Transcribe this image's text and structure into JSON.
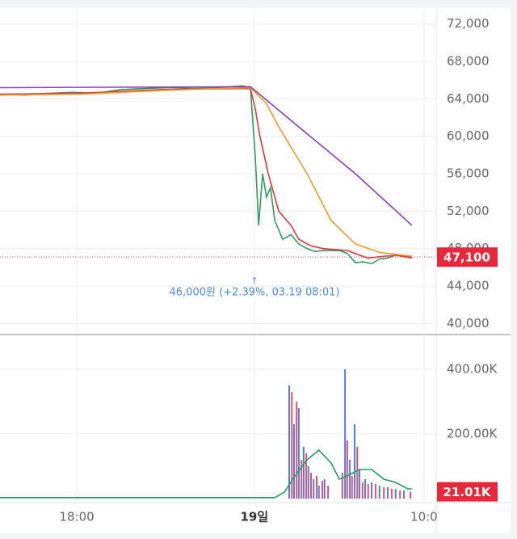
{
  "chart_data": [
    {
      "type": "line",
      "xlim": [
        0,
        100
      ],
      "ylim": [
        39000,
        73700
      ],
      "yticks": [
        {
          "value": 40000,
          "label": "40,000"
        },
        {
          "value": 44000,
          "label": "44,000"
        },
        {
          "value": 48000,
          "label": "48,000"
        },
        {
          "value": 52000,
          "label": "52,000"
        },
        {
          "value": 56000,
          "label": "56,000"
        },
        {
          "value": 60000,
          "label": "60,000"
        },
        {
          "value": 64000,
          "label": "64,000"
        },
        {
          "value": 68000,
          "label": "68,000"
        },
        {
          "value": 72000,
          "label": "72,000"
        }
      ],
      "last_value": {
        "value": 47100,
        "label": "47,100"
      },
      "annotation": "46,000원 (+2.39%, 03.19 08:01)",
      "series": [
        {
          "color": "#2e9d5e",
          "x": [
            0,
            5.6,
            11.1,
            16.7,
            22.2,
            27.8,
            33.3,
            38.9,
            44.4,
            50,
            55.6,
            57.4,
            58.5,
            59.3,
            60.2,
            61.1,
            62,
            63,
            63.9,
            64.8,
            66.7,
            68.5,
            70.4,
            72.2,
            74.1,
            77.8,
            79.6,
            81.5,
            83.3,
            85.2,
            87,
            88.9,
            90.7,
            92.6,
            94.4
          ],
          "values": [
            64500,
            64400,
            64600,
            64700,
            64600,
            65000,
            65100,
            65200,
            65100,
            65200,
            65400,
            65200,
            58000,
            50500,
            56000,
            53500,
            54500,
            51000,
            50000,
            49000,
            49500,
            48500,
            48000,
            47700,
            47800,
            47800,
            47500,
            46500,
            46600,
            46400,
            46900,
            47000,
            47300,
            47200,
            47100
          ]
        },
        {
          "color": "#e0393c",
          "x": [
            0,
            18.5,
            37,
            57.4,
            58.5,
            59.6,
            61.5,
            63.9,
            66.7,
            68.5,
            71.3,
            74.1,
            79.6,
            84.3,
            90.7,
            94.4
          ],
          "values": [
            64500,
            64600,
            65000,
            65100,
            63000,
            60000,
            56000,
            52000,
            50500,
            49000,
            48300,
            48000,
            47800,
            47000,
            47300,
            47000
          ]
        },
        {
          "color": "#f5972a",
          "x": [
            0,
            18.5,
            37,
            57.4,
            61.1,
            63.9,
            70.4,
            75.9,
            81.5,
            87,
            94.4
          ],
          "values": [
            64400,
            64500,
            64900,
            65200,
            63500,
            61000,
            56000,
            51000,
            48500,
            47600,
            47200
          ]
        },
        {
          "color": "#8b3db3",
          "x": [
            0,
            57.4,
            68.5,
            81.5,
            94.4
          ],
          "values": [
            65200,
            65300,
            61000,
            56000,
            50500
          ]
        }
      ]
    },
    {
      "type": "bar",
      "xlim": [
        0,
        100
      ],
      "ylim": [
        -10000,
        505000
      ],
      "yticks": [
        {
          "value": 200000,
          "label": "200.00K"
        },
        {
          "value": 400000,
          "label": "400.00K"
        }
      ],
      "xticks": [
        {
          "value": 17.6,
          "label": "18:00"
        },
        {
          "value": 58.3,
          "label": "19일"
        },
        {
          "value": 97.2,
          "label": "10:0"
        }
      ],
      "last_value": {
        "value": 21010,
        "label": "21.01K"
      },
      "series": [
        {
          "type": "bar",
          "color": "#4a7fe6",
          "x": [
            66.3,
            67.4,
            68.5,
            69.6,
            70.7,
            71.9,
            73.1,
            74.4,
            79.1,
            80.2,
            81.3,
            82.4,
            83.7,
            85.2,
            87,
            88.9,
            90.7,
            92.6
          ],
          "values": [
            350000,
            230000,
            280000,
            160000,
            100000,
            60000,
            40000,
            60000,
            400000,
            120000,
            230000,
            90000,
            60000,
            50000,
            40000,
            35000,
            30000,
            25000
          ]
        },
        {
          "type": "bar",
          "color": "#e8506a",
          "x": [
            66.9,
            68,
            69.1,
            70.2,
            71.3,
            72.6,
            73.9,
            75.2,
            78.5,
            79.6,
            80.7,
            81.9,
            83.1,
            84.4,
            86.1,
            88,
            89.8,
            91.7,
            94.1
          ],
          "values": [
            330000,
            300000,
            120000,
            140000,
            80000,
            70000,
            55000,
            40000,
            80000,
            180000,
            70000,
            160000,
            50000,
            45000,
            45000,
            35000,
            30000,
            25000,
            21010
          ]
        },
        {
          "type": "line",
          "color": "#1ea05f",
          "x": [
            0,
            63,
            65.2,
            67.6,
            70.4,
            73.1,
            75.9,
            77.8,
            79.6,
            82.4,
            85.2,
            88,
            90.7,
            93.5,
            94.4
          ],
          "values": [
            3000,
            3000,
            20000,
            70000,
            120000,
            150000,
            110000,
            60000,
            70000,
            90000,
            90000,
            60000,
            50000,
            30000,
            30000
          ]
        }
      ]
    }
  ]
}
